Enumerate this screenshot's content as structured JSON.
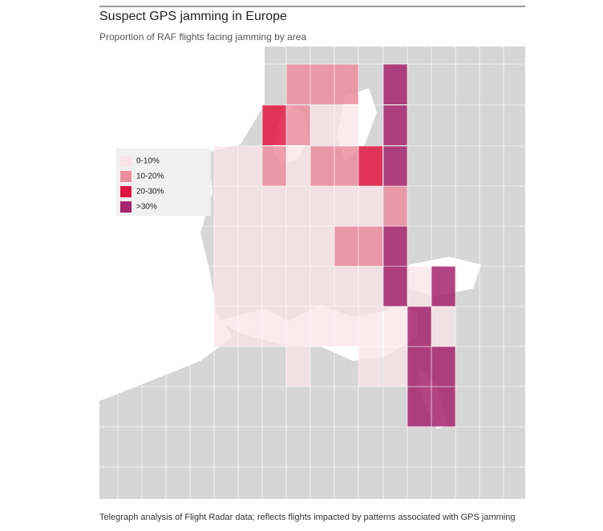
{
  "header": {
    "title": "Suspect GPS jamming in Europe",
    "subtitle": "Proportion of RAF flights facing jamming by area"
  },
  "legend": {
    "items": [
      {
        "label": "0-10%",
        "color": "#f9e3e8"
      },
      {
        "label": "10-20%",
        "color": "#ec8da0"
      },
      {
        "label": "20-30%",
        "color": "#e01642"
      },
      {
        "label": ">30%",
        "color": "#a6236f"
      }
    ]
  },
  "footer": {
    "note": "Telegraph analysis of Flight Radar data; reflects flights impacted by patterns associated with GPS jamming"
  }
}
